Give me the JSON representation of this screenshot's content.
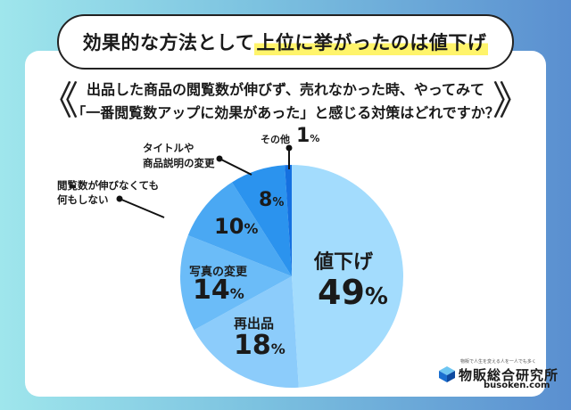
{
  "header": {
    "title_plain": "効果的な方法として",
    "title_highlight": "上位に挙がったのは値下げ"
  },
  "question": {
    "line1": "出品した商品の閲覧数が伸びず、売れなかった時、やってみて",
    "line2": "「一番閲覧数アップに効果があった」と感じる対策はどれですか？",
    "left_chevron": "《",
    "right_chevron": "》"
  },
  "chart_data": {
    "type": "pie",
    "title": "出品した商品の閲覧数が伸びず、売れなかった時、やってみて「一番閲覧数アップに効果があった」と感じる対策はどれですか？",
    "categories": [
      "値下げ",
      "再出品",
      "写真の変更",
      "閲覧数が伸びなくても何もしない",
      "タイトルや商品説明の変更",
      "その他"
    ],
    "values": [
      49,
      18,
      14,
      10,
      8,
      1
    ],
    "unit": "%",
    "colors": [
      "#a3dcfd",
      "#8cccfb",
      "#6bbcf8",
      "#4aa8f3",
      "#2b93ee",
      "#1570e0"
    ],
    "start_angle": "12 o'clock, clockwise"
  },
  "labels": {
    "s0_name": "値下げ",
    "s0_value": "49",
    "s1_name": "再出品",
    "s1_value": "18",
    "s2_name": "写真の変更",
    "s2_value": "14",
    "s3_name_l1": "閲覧数が伸びなくても",
    "s3_name_l2": "何もしない",
    "s3_value": "10",
    "s4_name_l1": "タイトルや",
    "s4_name_l2": "商品説明の変更",
    "s4_value": "8",
    "s5_name": "その他",
    "s5_value": "1",
    "percent_sign": "%"
  },
  "logo": {
    "tagline": "物販で人生を変える人を一人でも多く",
    "name": "物販総合研究所",
    "url": "busoken.com"
  }
}
